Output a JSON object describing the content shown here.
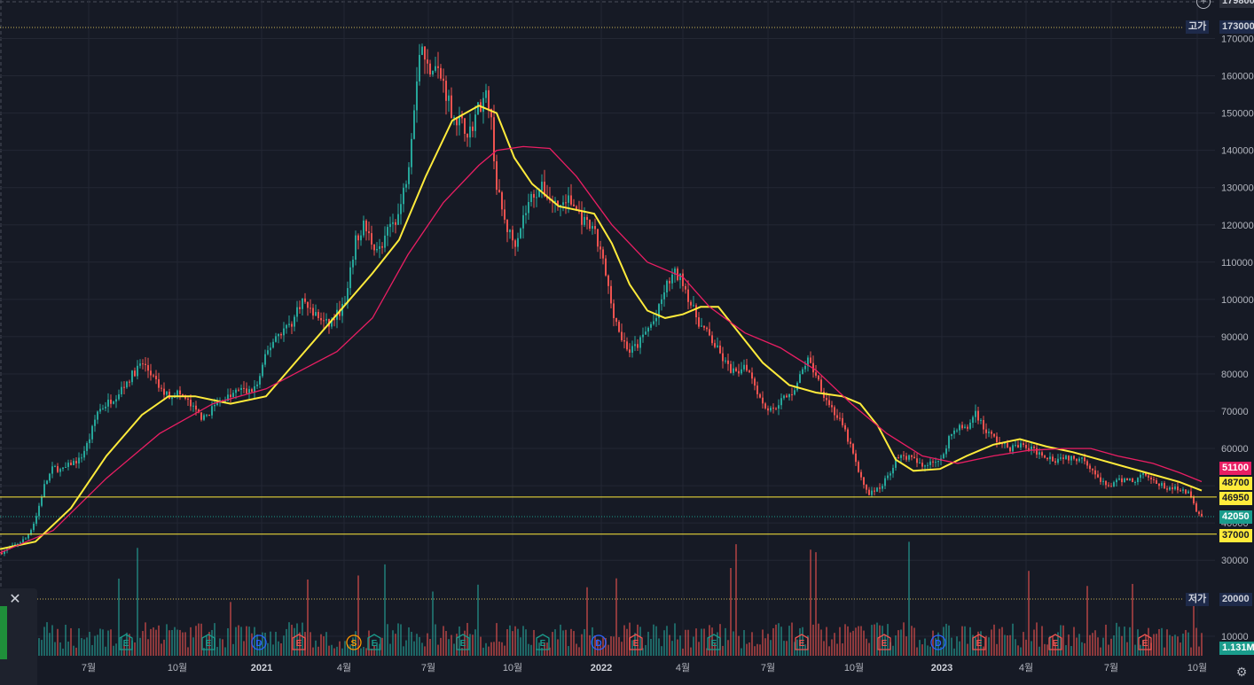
{
  "chart_data": {
    "type": "candlestick",
    "y_axis": {
      "ticks": [
        "170000",
        "160000",
        "150000",
        "140000",
        "130000",
        "120000",
        "110000",
        "100000",
        "90000",
        "80000",
        "70000",
        "60000",
        "50000",
        "40000",
        "30000",
        "10000"
      ],
      "ylim": [
        10000,
        180000
      ]
    },
    "x_axis": {
      "ticks": [
        {
          "label": "7월",
          "bold": false
        },
        {
          "label": "10월",
          "bold": false
        },
        {
          "label": "2021",
          "bold": true
        },
        {
          "label": "4월",
          "bold": false
        },
        {
          "label": "7월",
          "bold": false
        },
        {
          "label": "10월",
          "bold": false
        },
        {
          "label": "2022",
          "bold": true
        },
        {
          "label": "4월",
          "bold": false
        },
        {
          "label": "7월",
          "bold": false
        },
        {
          "label": "10월",
          "bold": false
        },
        {
          "label": "2023",
          "bold": true
        },
        {
          "label": "4월",
          "bold": false
        },
        {
          "label": "7월",
          "bold": false
        },
        {
          "label": "10월",
          "bold": false
        }
      ]
    },
    "price_labels": {
      "top_cut": "179800",
      "high_label": "고가",
      "high_value": "173000",
      "low_label": "저가",
      "low_value": "20000",
      "ma_red_value": "51100",
      "ma_yellow_value": "48700",
      "hline_upper": "46950",
      "last_price": "42050",
      "hline_lower": "37000",
      "volume_value": "1.131M"
    },
    "hlines": [
      46950,
      37000
    ],
    "series": [
      {
        "kind": "close_path",
        "values": [
          [
            0,
            32000
          ],
          [
            10,
            33000
          ],
          [
            20,
            34500
          ],
          [
            30,
            36000
          ],
          [
            40,
            41000
          ],
          [
            50,
            50000
          ],
          [
            60,
            55000
          ],
          [
            70,
            54000
          ],
          [
            80,
            56000
          ],
          [
            90,
            57000
          ],
          [
            100,
            62000
          ],
          [
            110,
            70000
          ],
          [
            120,
            72000
          ],
          [
            130,
            74000
          ],
          [
            140,
            77000
          ],
          [
            150,
            80000
          ],
          [
            160,
            83000
          ],
          [
            170,
            80000
          ],
          [
            180,
            76000
          ],
          [
            190,
            74000
          ],
          [
            200,
            75000
          ],
          [
            210,
            73000
          ],
          [
            220,
            70000
          ],
          [
            230,
            68000
          ],
          [
            240,
            71000
          ],
          [
            250,
            73000
          ],
          [
            260,
            74000
          ],
          [
            270,
            76000
          ],
          [
            280,
            75000
          ],
          [
            290,
            77000
          ],
          [
            300,
            85000
          ],
          [
            310,
            90000
          ],
          [
            320,
            92000
          ],
          [
            330,
            94000
          ],
          [
            340,
            100000
          ],
          [
            350,
            97000
          ],
          [
            360,
            95000
          ],
          [
            370,
            93000
          ],
          [
            380,
            96000
          ],
          [
            390,
            99000
          ],
          [
            400,
            115000
          ],
          [
            410,
            120000
          ],
          [
            420,
            115000
          ],
          [
            430,
            113000
          ],
          [
            440,
            120000
          ],
          [
            450,
            123000
          ],
          [
            460,
            135000
          ],
          [
            470,
            160000
          ],
          [
            475,
            170000
          ],
          [
            480,
            162000
          ],
          [
            490,
            163000
          ],
          [
            500,
            158000
          ],
          [
            510,
            150000
          ],
          [
            520,
            147000
          ],
          [
            530,
            145000
          ],
          [
            540,
            152000
          ],
          [
            550,
            155000
          ],
          [
            555,
            145000
          ],
          [
            560,
            130000
          ],
          [
            570,
            120000
          ],
          [
            580,
            115000
          ],
          [
            590,
            122000
          ],
          [
            600,
            128000
          ],
          [
            610,
            130000
          ],
          [
            620,
            127000
          ],
          [
            630,
            125000
          ],
          [
            640,
            127000
          ],
          [
            650,
            124000
          ],
          [
            660,
            120000
          ],
          [
            670,
            118000
          ],
          [
            680,
            110000
          ],
          [
            690,
            98000
          ],
          [
            700,
            90000
          ],
          [
            710,
            86000
          ],
          [
            720,
            88000
          ],
          [
            730,
            92000
          ],
          [
            740,
            95000
          ],
          [
            750,
            103000
          ],
          [
            760,
            107000
          ],
          [
            770,
            105000
          ],
          [
            780,
            98000
          ],
          [
            790,
            93000
          ],
          [
            800,
            90000
          ],
          [
            810,
            86000
          ],
          [
            820,
            82000
          ],
          [
            830,
            80000
          ],
          [
            840,
            83000
          ],
          [
            850,
            78000
          ],
          [
            860,
            72000
          ],
          [
            870,
            70000
          ],
          [
            880,
            73000
          ],
          [
            890,
            74000
          ],
          [
            900,
            78000
          ],
          [
            910,
            84000
          ],
          [
            920,
            80000
          ],
          [
            930,
            74000
          ],
          [
            940,
            70000
          ],
          [
            950,
            66000
          ],
          [
            960,
            60000
          ],
          [
            970,
            52000
          ],
          [
            980,
            48000
          ],
          [
            990,
            49000
          ],
          [
            1000,
            52000
          ],
          [
            1010,
            57000
          ],
          [
            1020,
            58000
          ],
          [
            1030,
            57000
          ],
          [
            1040,
            55000
          ],
          [
            1050,
            57000
          ],
          [
            1060,
            56000
          ],
          [
            1070,
            63000
          ],
          [
            1080,
            66000
          ],
          [
            1090,
            65000
          ],
          [
            1100,
            70000
          ],
          [
            1110,
            65000
          ],
          [
            1120,
            63000
          ],
          [
            1130,
            61000
          ],
          [
            1140,
            60000
          ],
          [
            1150,
            61000
          ],
          [
            1160,
            60000
          ],
          [
            1170,
            59000
          ],
          [
            1180,
            58000
          ],
          [
            1190,
            57000
          ],
          [
            1200,
            58000
          ],
          [
            1210,
            57000
          ],
          [
            1220,
            58000
          ],
          [
            1230,
            55000
          ],
          [
            1240,
            51000
          ],
          [
            1250,
            50000
          ],
          [
            1260,
            51000
          ],
          [
            1270,
            52000
          ],
          [
            1280,
            51000
          ],
          [
            1290,
            54000
          ],
          [
            1300,
            51000
          ],
          [
            1310,
            50000
          ],
          [
            1320,
            49000
          ],
          [
            1330,
            49500
          ],
          [
            1340,
            48000
          ],
          [
            1350,
            43000
          ],
          [
            1355,
            42050
          ]
        ]
      },
      {
        "kind": "ma_yellow",
        "color": "#ffeb3b",
        "values": [
          [
            0,
            33000
          ],
          [
            40,
            35000
          ],
          [
            80,
            44000
          ],
          [
            120,
            58000
          ],
          [
            160,
            69000
          ],
          [
            190,
            74000
          ],
          [
            220,
            74000
          ],
          [
            260,
            72000
          ],
          [
            300,
            74000
          ],
          [
            340,
            85000
          ],
          [
            380,
            96000
          ],
          [
            420,
            107000
          ],
          [
            450,
            116000
          ],
          [
            480,
            133000
          ],
          [
            510,
            148000
          ],
          [
            540,
            152000
          ],
          [
            560,
            150000
          ],
          [
            580,
            138000
          ],
          [
            600,
            131000
          ],
          [
            630,
            125000
          ],
          [
            650,
            124000
          ],
          [
            670,
            123000
          ],
          [
            690,
            115000
          ],
          [
            710,
            104000
          ],
          [
            730,
            97000
          ],
          [
            750,
            95000
          ],
          [
            770,
            96000
          ],
          [
            790,
            98000
          ],
          [
            810,
            98000
          ],
          [
            830,
            92000
          ],
          [
            860,
            83000
          ],
          [
            890,
            77000
          ],
          [
            920,
            75000
          ],
          [
            950,
            74000
          ],
          [
            970,
            72000
          ],
          [
            990,
            66000
          ],
          [
            1010,
            57000
          ],
          [
            1030,
            54000
          ],
          [
            1060,
            54500
          ],
          [
            1090,
            58000
          ],
          [
            1120,
            61000
          ],
          [
            1150,
            62500
          ],
          [
            1180,
            60500
          ],
          [
            1210,
            59000
          ],
          [
            1240,
            57000
          ],
          [
            1270,
            55000
          ],
          [
            1300,
            53000
          ],
          [
            1330,
            51000
          ],
          [
            1355,
            48700
          ]
        ]
      },
      {
        "kind": "ma_red",
        "color": "#e91e63",
        "values": [
          [
            0,
            32000
          ],
          [
            60,
            38000
          ],
          [
            120,
            52000
          ],
          [
            180,
            64000
          ],
          [
            240,
            72000
          ],
          [
            300,
            76000
          ],
          [
            340,
            81000
          ],
          [
            380,
            86000
          ],
          [
            420,
            95000
          ],
          [
            460,
            112000
          ],
          [
            500,
            126000
          ],
          [
            540,
            136000
          ],
          [
            560,
            140000
          ],
          [
            590,
            141000
          ],
          [
            620,
            140500
          ],
          [
            650,
            133000
          ],
          [
            690,
            120000
          ],
          [
            730,
            110000
          ],
          [
            770,
            106000
          ],
          [
            800,
            98000
          ],
          [
            840,
            91000
          ],
          [
            880,
            87000
          ],
          [
            920,
            81000
          ],
          [
            960,
            72000
          ],
          [
            1000,
            64000
          ],
          [
            1040,
            58000
          ],
          [
            1080,
            56000
          ],
          [
            1120,
            58000
          ],
          [
            1160,
            59500
          ],
          [
            1200,
            60000
          ],
          [
            1230,
            60000
          ],
          [
            1260,
            58000
          ],
          [
            1300,
            56000
          ],
          [
            1330,
            53500
          ],
          [
            1355,
            51100
          ]
        ]
      }
    ],
    "event_markers": [
      {
        "type": "E",
        "color": "green"
      },
      {
        "type": "E",
        "color": "green"
      },
      {
        "type": "D",
        "color": "blue"
      },
      {
        "type": "E",
        "color": "red"
      },
      {
        "type": "S",
        "color": "orange"
      },
      {
        "type": "E",
        "color": "green"
      },
      {
        "type": "E",
        "color": "green"
      },
      {
        "type": "E",
        "color": "green"
      },
      {
        "type": "D",
        "color": "blue"
      },
      {
        "type": "E",
        "color": "red"
      },
      {
        "type": "E",
        "color": "green"
      },
      {
        "type": "E",
        "color": "red"
      },
      {
        "type": "E",
        "color": "red"
      },
      {
        "type": "D",
        "color": "blue"
      },
      {
        "type": "E",
        "color": "red"
      },
      {
        "type": "E",
        "color": "red"
      },
      {
        "type": "E",
        "color": "red"
      },
      {
        "type": "E",
        "color": "red"
      }
    ],
    "colors": {
      "background": "#161a25",
      "up": "#26a69a",
      "down": "#ef5350",
      "grid": "#232734",
      "hline": "#ffeb3b"
    }
  }
}
